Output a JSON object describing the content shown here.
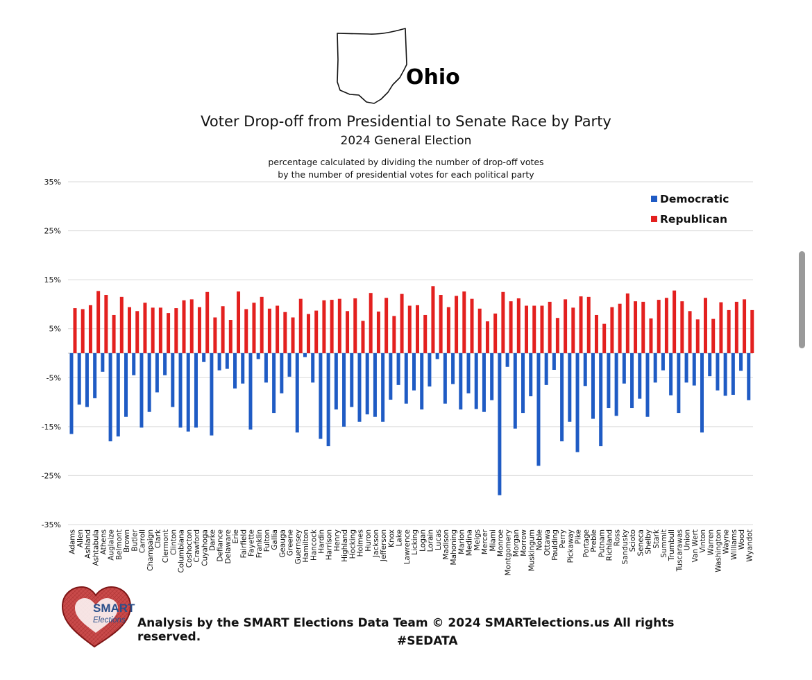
{
  "header": {
    "state_name": "Ohio",
    "title": "Voter Drop-off from Presidential to Senate Race by Party",
    "subtitle": "2024 General Election",
    "note_line1": "percentage calculated by dividing the number of drop-off votes",
    "note_line2": "by the number of presidential votes for each political party"
  },
  "footer": {
    "credit": "Analysis by the SMART Elections Data Team © 2024 SMARTelections.us All rights reserved.",
    "hashtag": "#SEDATA",
    "logo_text_line1": "SMART",
    "logo_text_line2": "Elections"
  },
  "colors": {
    "democratic": "#1f5bc4",
    "republican": "#e3201f",
    "grid": "#d9d9d9"
  },
  "chart_data": {
    "type": "bar",
    "title": "Voter Drop-off from Presidential to Senate Race by Party",
    "subtitle": "2024 General Election",
    "ylim": [
      -35,
      35
    ],
    "yticks": [
      35,
      25,
      15,
      5,
      -5,
      -15,
      -25,
      -35
    ],
    "ytick_labels": [
      "35%",
      "25%",
      "15%",
      "5%",
      "-5%",
      "-15%",
      "-25%",
      "-35%"
    ],
    "grid": true,
    "legend_position": "top-right",
    "categories": [
      "Adams",
      "Allen",
      "Ashland",
      "Ashtabula",
      "Athens",
      "Auglaize",
      "Belmont",
      "Brown",
      "Butler",
      "Carroll",
      "Champaign",
      "Clark",
      "Clermont",
      "Clinton",
      "Columbiana",
      "Coshocton",
      "Crawford",
      "Cuyahoga",
      "Darke",
      "Defiance",
      "Delaware",
      "Erie",
      "Fairfield",
      "Fayette",
      "Franklin",
      "Fulton",
      "Gallia",
      "Geauga",
      "Greene",
      "Guernsey",
      "Hamilton",
      "Hancock",
      "Hardin",
      "Harrison",
      "Henry",
      "Highland",
      "Hocking",
      "Holmes",
      "Huron",
      "Jackson",
      "Jefferson",
      "Knox",
      "Lake",
      "Lawrence",
      "Licking",
      "Logan",
      "Lorain",
      "Lucas",
      "Madison",
      "Mahoning",
      "Marion",
      "Medina",
      "Meigs",
      "Mercer",
      "Miami",
      "Monroe",
      "Montgomery",
      "Morgan",
      "Morrow",
      "Muskingum",
      "Noble",
      "Ottawa",
      "Paulding",
      "Perry",
      "Pickaway",
      "Pike",
      "Portage",
      "Preble",
      "Putnam",
      "Richland",
      "Ross",
      "Sandusky",
      "Scioto",
      "Seneca",
      "Shelby",
      "Stark",
      "Summit",
      "Trumbull",
      "Tuscarawas",
      "Union",
      "Van Wert",
      "Vinton",
      "Warren",
      "Washington",
      "Wayne",
      "Williams",
      "Wood",
      "Wyandot"
    ],
    "series": [
      {
        "name": "Democratic",
        "color": "#1f5bc4",
        "values": [
          -16.5,
          -10.5,
          -11,
          -9.2,
          -3.8,
          -18,
          -17,
          -13,
          -4.5,
          -15.2,
          -12,
          -8,
          -4.5,
          -11,
          -15.2,
          -16,
          -15.2,
          -1.8,
          -16.8,
          -3.5,
          -3.2,
          -7.2,
          -6.2,
          -15.6,
          -1.2,
          -6,
          -12.2,
          -8.2,
          -4.8,
          -16.2,
          -0.8,
          -6,
          -17.5,
          -19,
          -11.5,
          -15,
          -11,
          -14,
          -12.5,
          -13,
          -14,
          -9.5,
          -6.5,
          -10.3,
          -7.6,
          -11.5,
          -6.8,
          -1.2,
          -10.3,
          -6.3,
          -11.5,
          -8.2,
          -11.4,
          -12,
          -9.6,
          -29,
          -2.8,
          -15.4,
          -12.2,
          -8.8,
          -23,
          -6.5,
          -3.4,
          -18,
          -14,
          -20.2,
          -6.7,
          -13.4,
          -19,
          -11.2,
          -12.8,
          -6.2,
          -11.2,
          -9.3,
          -13,
          -6,
          -3.5,
          -8.6,
          -12.2,
          -6,
          -6.6,
          -16.2,
          -4.7,
          -7.6,
          -8.7,
          -8.5,
          -3.6,
          -9.6
        ]
      },
      {
        "name": "Republican",
        "color": "#e3201f",
        "values": [
          9.2,
          9,
          9.8,
          12.7,
          11.9,
          7.8,
          11.5,
          9.4,
          8.6,
          10.3,
          9.3,
          9.3,
          8.2,
          9.2,
          10.8,
          11,
          9.4,
          12.5,
          7.3,
          9.6,
          6.8,
          12.6,
          9,
          10.3,
          11.5,
          9.1,
          9.7,
          8.4,
          7.3,
          11.1,
          8,
          8.7,
          10.8,
          10.9,
          11.1,
          8.6,
          11.2,
          6.6,
          12.3,
          8.5,
          11.3,
          7.6,
          12.1,
          9.7,
          9.8,
          7.8,
          13.7,
          11.9,
          9.4,
          11.7,
          12.6,
          11.1,
          9.1,
          6.5,
          8.1,
          12.5,
          10.6,
          11.2,
          9.7,
          9.7,
          9.7,
          10.5,
          7.2,
          11,
          9.3,
          11.6,
          11.5,
          7.8,
          6,
          9.4,
          10.1,
          12.2,
          10.6,
          10.5,
          7.1,
          10.9,
          11.3,
          12.8,
          10.6,
          8.6,
          6.9,
          11.3,
          7,
          10.4,
          8.8,
          10.5,
          11,
          8.8
        ]
      }
    ]
  }
}
